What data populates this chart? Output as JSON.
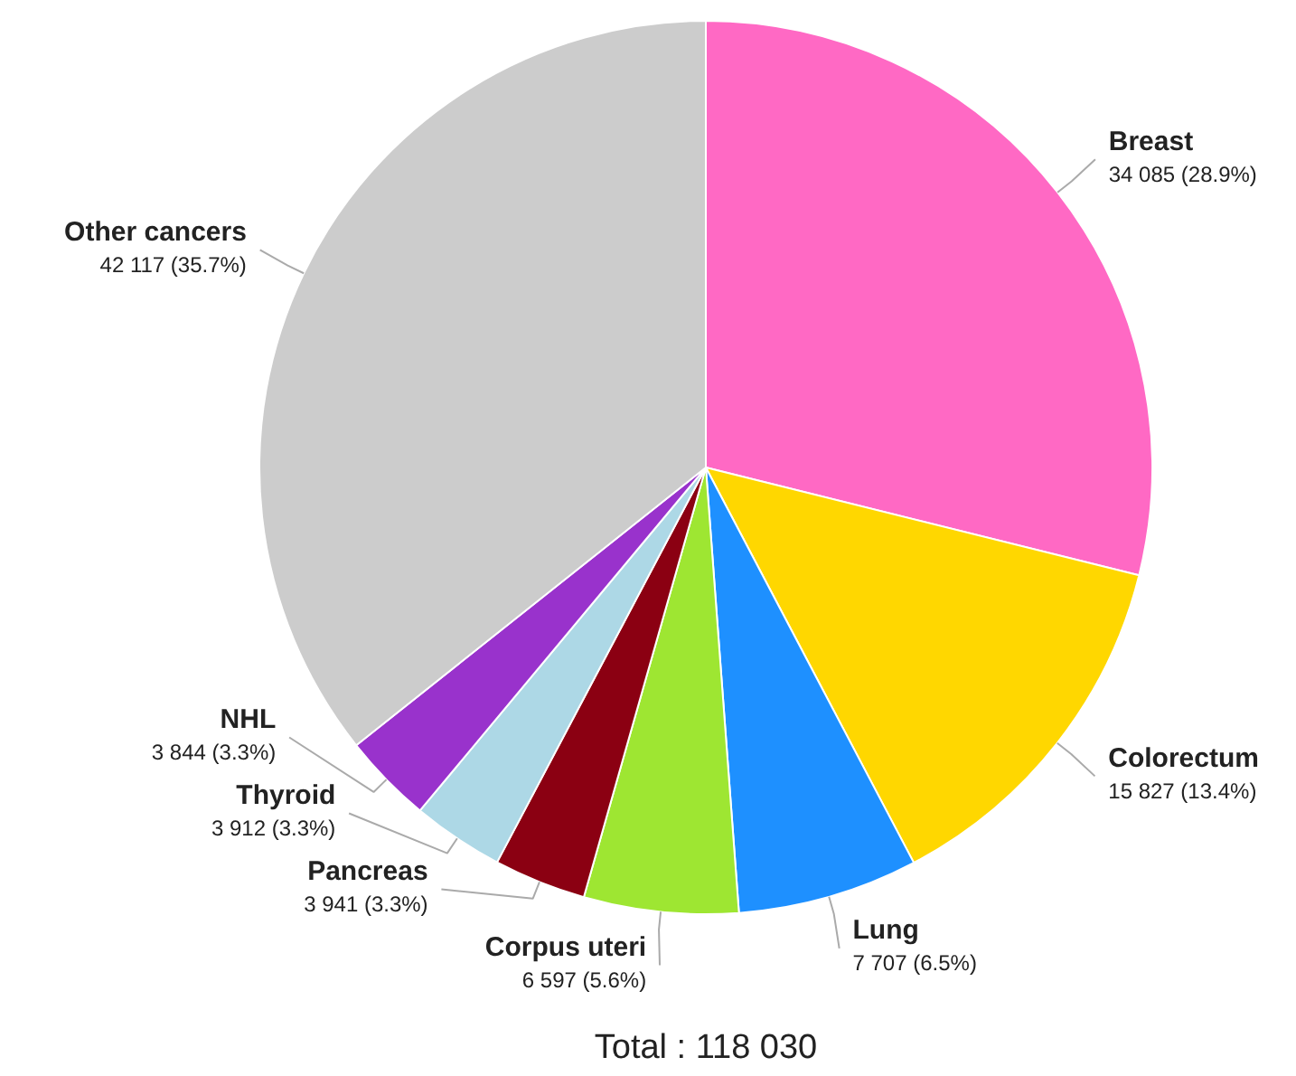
{
  "chart_data": {
    "type": "pie",
    "categories": [
      "Breast",
      "Colorectum",
      "Lung",
      "Corpus uteri",
      "Pancreas",
      "Thyroid",
      "NHL",
      "Other cancers"
    ],
    "values": [
      34085,
      15827,
      7707,
      6597,
      3941,
      3912,
      3844,
      42117
    ],
    "colors": [
      "#ff69c4",
      "#ffd700",
      "#1e90ff",
      "#9ee632",
      "#8b0012",
      "#add8e6",
      "#9932cc",
      "#cccccc"
    ],
    "value_labels": [
      "34 085 (28.9%)",
      "15 827 (13.4%)",
      "7 707 (6.5%)",
      "6 597 (5.6%)",
      "3 941 (3.3%)",
      "3 912 (3.3%)",
      "3 844 (3.3%)",
      "42 117 (35.7%)"
    ],
    "annotations": [
      "Total : 118 030"
    ]
  }
}
